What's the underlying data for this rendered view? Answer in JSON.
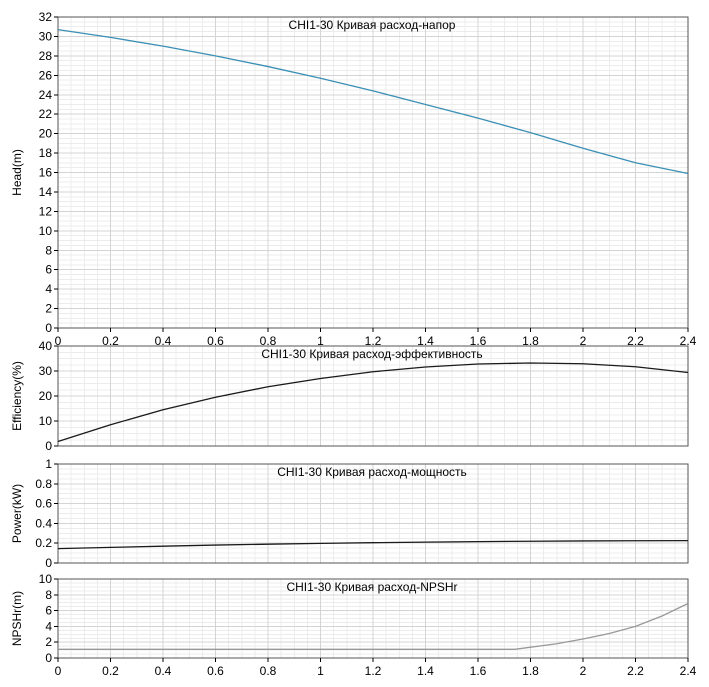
{
  "chart_data": [
    {
      "type": "line",
      "title": "CHI1-30 Кривая расход-напор",
      "xlabel": "",
      "ylabel": "Head(m)",
      "xlim": [
        0,
        2.4
      ],
      "ylim": [
        0,
        32
      ],
      "x_ticks": [
        "0",
        "0.2",
        "0.4",
        "0.6",
        "0.8",
        "1",
        "1.2",
        "1.4",
        "1.6",
        "1.8",
        "2",
        "2.2",
        "2.4"
      ],
      "y_ticks": [
        "0",
        "2",
        "4",
        "6",
        "8",
        "10",
        "12",
        "14",
        "16",
        "18",
        "20",
        "22",
        "24",
        "26",
        "28",
        "30",
        "32"
      ],
      "grid": true,
      "series": [
        {
          "color": "#3a8fb5",
          "x": [
            0,
            0.2,
            0.4,
            0.6,
            0.8,
            1.0,
            1.2,
            1.4,
            1.6,
            1.8,
            2.0,
            2.2,
            2.4
          ],
          "y": [
            30.7,
            29.9,
            29.0,
            28.0,
            26.9,
            25.7,
            24.4,
            23.0,
            21.6,
            20.1,
            18.5,
            17.0,
            15.9
          ]
        }
      ]
    },
    {
      "type": "line",
      "title": "CHI1-30 Кривая расход-эффективность",
      "xlabel": "",
      "ylabel": "Efficiency(%)",
      "xlim": [
        0,
        2.4
      ],
      "ylim": [
        0,
        40
      ],
      "x_ticks": [],
      "y_ticks": [
        "0",
        "10",
        "20",
        "30",
        "40"
      ],
      "grid": true,
      "series": [
        {
          "color": "#1a1a1a",
          "x": [
            0,
            0.2,
            0.4,
            0.6,
            0.8,
            1.0,
            1.2,
            1.4,
            1.6,
            1.8,
            2.0,
            2.2,
            2.4
          ],
          "y": [
            1.8,
            8.5,
            14.5,
            19.5,
            23.7,
            27.0,
            29.7,
            31.6,
            32.8,
            33.2,
            32.9,
            31.7,
            29.4
          ]
        }
      ]
    },
    {
      "type": "line",
      "title": "CHI1-30 Кривая расход-мощность",
      "xlabel": "",
      "ylabel": "Power(kW)",
      "xlim": [
        0,
        2.4
      ],
      "ylim": [
        0,
        1
      ],
      "x_ticks": [],
      "y_ticks": [
        "0",
        "0.2",
        "0.4",
        "0.6",
        "0.8",
        "1"
      ],
      "grid": true,
      "series": [
        {
          "color": "#1a1a1a",
          "x": [
            0,
            0.2,
            0.4,
            0.6,
            0.8,
            1.0,
            1.2,
            1.4,
            1.6,
            1.8,
            2.0,
            2.2,
            2.4
          ],
          "y": [
            0.145,
            0.158,
            0.17,
            0.181,
            0.19,
            0.198,
            0.205,
            0.211,
            0.216,
            0.22,
            0.223,
            0.225,
            0.226
          ]
        }
      ]
    },
    {
      "type": "line",
      "title": "CHI1-30 Кривая расход-NPSHr",
      "xlabel": "",
      "ylabel": "NPSHr(m)",
      "xlim": [
        0,
        2.4
      ],
      "ylim": [
        0,
        10
      ],
      "x_ticks": [
        "0",
        "0.2",
        "0.4",
        "0.6",
        "0.8",
        "1",
        "1.2",
        "1.4",
        "1.6",
        "1.8",
        "2",
        "2.2",
        "2.4"
      ],
      "y_ticks": [
        "0",
        "2",
        "4",
        "6",
        "8",
        "10"
      ],
      "grid": true,
      "series": [
        {
          "color": "#999999",
          "x": [
            0,
            0.5,
            1.0,
            1.5,
            1.74,
            1.9,
            2.0,
            2.1,
            2.2,
            2.3,
            2.4
          ],
          "y": [
            1.1,
            1.1,
            1.1,
            1.1,
            1.1,
            1.8,
            2.4,
            3.1,
            4.0,
            5.3,
            6.9
          ]
        }
      ]
    }
  ]
}
